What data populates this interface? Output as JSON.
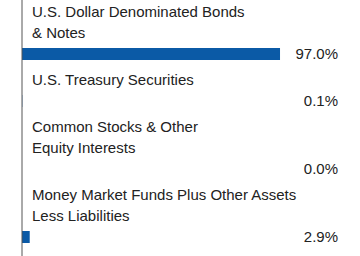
{
  "chart_data": {
    "type": "bar",
    "orientation": "horizontal",
    "categories": [
      "U.S. Dollar Denominated Bonds\n& Notes",
      "U.S. Treasury Securities",
      "Common Stocks & Other\nEquity Interests",
      "Money Market Funds Plus Other Assets\nLess Liabilities"
    ],
    "values": [
      97.0,
      0.1,
      0.0,
      2.9
    ],
    "value_labels": [
      "97.0%",
      "0.1%",
      "0.0%",
      "2.9%"
    ],
    "color": "#0b5aa6",
    "xlim": [
      0,
      100
    ],
    "data_labels": true,
    "tick_labels": false,
    "grid": false
  }
}
